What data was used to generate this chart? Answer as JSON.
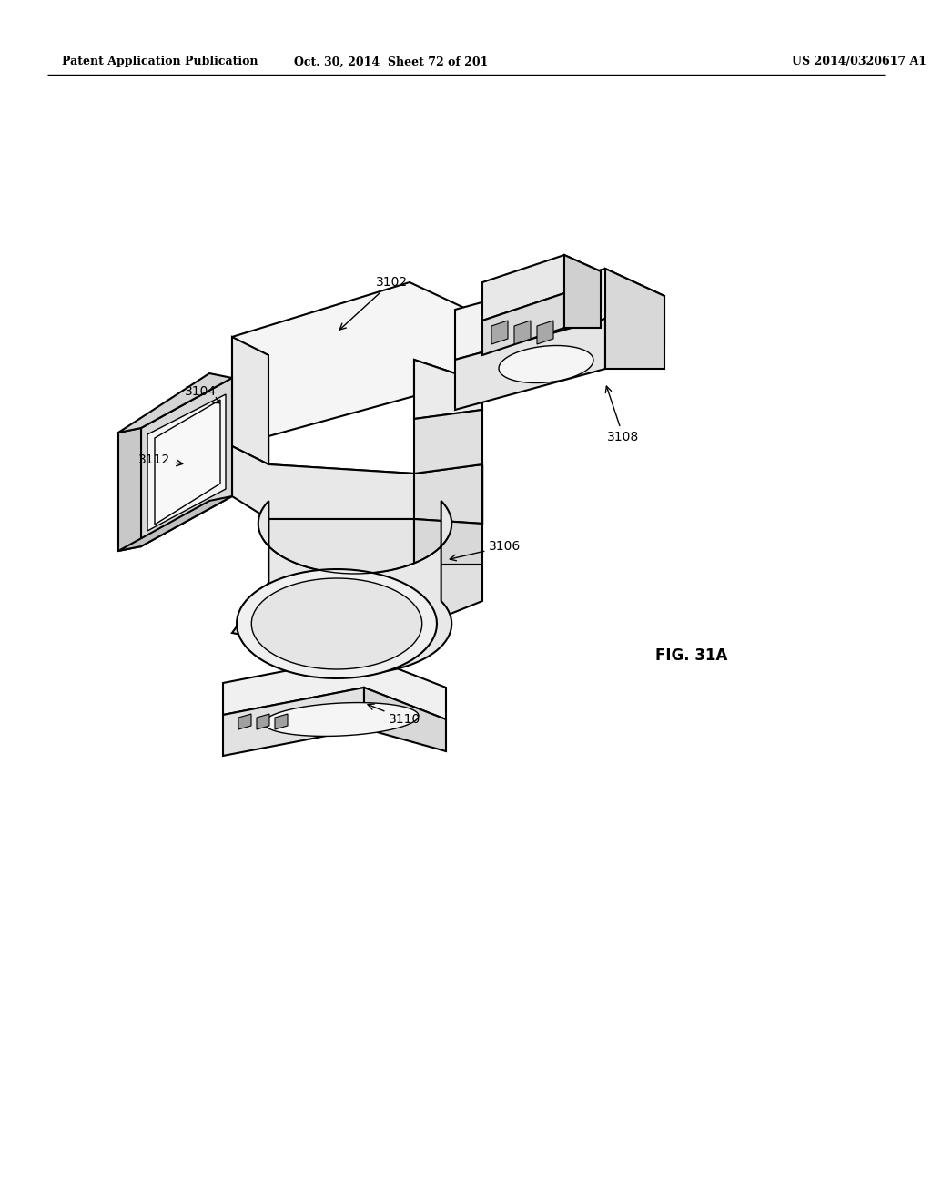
{
  "background_color": "#ffffff",
  "line_color": "#000000",
  "header_left": "Patent Application Publication",
  "header_center": "Oct. 30, 2014  Sheet 72 of 201",
  "header_right": "US 2014/0320617 A1",
  "figure_label": "FIG. 31A",
  "page_width": 10.24,
  "page_height": 13.2,
  "dpi": 100
}
